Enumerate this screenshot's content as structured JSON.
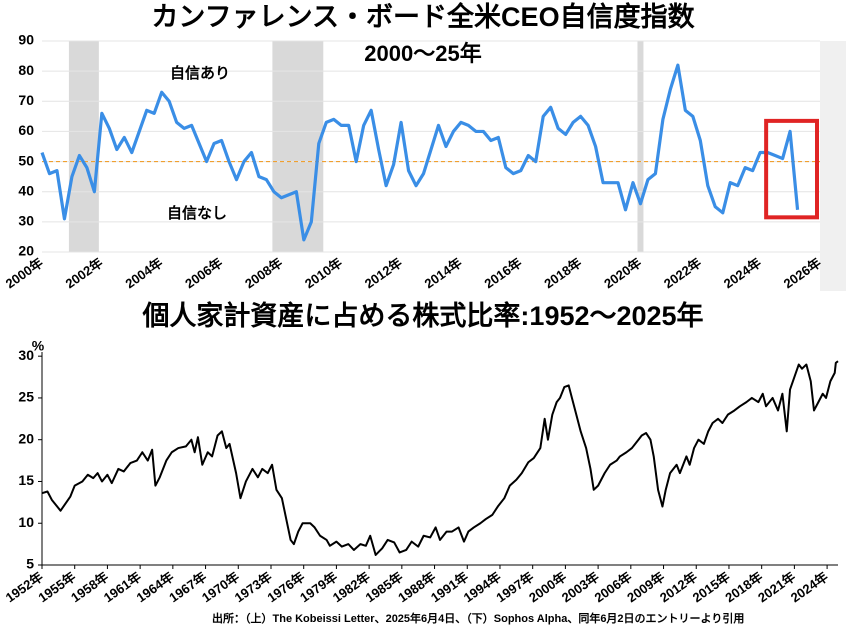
{
  "chart_data": [
    {
      "type": "line",
      "title": "カンファレンス・ボード全米CEO自信度指数",
      "subtitle": "2000～25年",
      "annotations": [
        "自信あり",
        "自信なし"
      ],
      "x": [
        2000,
        2000.25,
        2000.5,
        2000.75,
        2001,
        2001.25,
        2001.5,
        2001.75,
        2002,
        2002.25,
        2002.5,
        2002.75,
        2003,
        2003.25,
        2003.5,
        2003.75,
        2004,
        2004.25,
        2004.5,
        2004.75,
        2005,
        2005.25,
        2005.5,
        2005.75,
        2006,
        2006.25,
        2006.5,
        2006.75,
        2007,
        2007.25,
        2007.5,
        2007.75,
        2008,
        2008.25,
        2008.5,
        2008.75,
        2009,
        2009.25,
        2009.5,
        2009.75,
        2010,
        2010.25,
        2010.5,
        2010.75,
        2011,
        2011.25,
        2011.5,
        2011.75,
        2012,
        2012.25,
        2012.5,
        2012.75,
        2013,
        2013.25,
        2013.5,
        2013.75,
        2014,
        2014.25,
        2014.5,
        2014.75,
        2015,
        2015.25,
        2015.5,
        2015.75,
        2016,
        2016.25,
        2016.5,
        2016.75,
        2017,
        2017.25,
        2017.5,
        2017.75,
        2018,
        2018.25,
        2018.5,
        2018.75,
        2019,
        2019.25,
        2019.5,
        2019.75,
        2020,
        2020.25,
        2020.5,
        2020.75,
        2021,
        2021.25,
        2021.5,
        2021.75,
        2022,
        2022.25,
        2022.5,
        2022.75,
        2023,
        2023.25,
        2023.5,
        2023.75,
        2024,
        2024.25,
        2024.5,
        2024.75,
        2025,
        2025.25
      ],
      "values": [
        53,
        46,
        47,
        31,
        45,
        52,
        48,
        40,
        66,
        61,
        54,
        58,
        53,
        60,
        67,
        66,
        73,
        70,
        63,
        61,
        62,
        56,
        50,
        56,
        57,
        50,
        44,
        50,
        53,
        45,
        44,
        40,
        38,
        39,
        40,
        24,
        30,
        56,
        63,
        64,
        62,
        62,
        50,
        62,
        67,
        54,
        42,
        49,
        63,
        47,
        42,
        46,
        54,
        62,
        55,
        60,
        63,
        62,
        60,
        60,
        57,
        58,
        48,
        46,
        47,
        52,
        50,
        65,
        68,
        61,
        59,
        63,
        65,
        62,
        55,
        43,
        43,
        43,
        34,
        43,
        36,
        44,
        46,
        64,
        74,
        82,
        67,
        65,
        57,
        42,
        35,
        33,
        43,
        42,
        48,
        47,
        53,
        53,
        52,
        51,
        60,
        34
      ],
      "color": "#3a8ee6",
      "xlim": [
        2000,
        2026
      ],
      "xticks": [
        {
          "value": 2000,
          "label": "2000年"
        },
        {
          "value": 2002,
          "label": "2002年"
        },
        {
          "value": 2004,
          "label": "2004年"
        },
        {
          "value": 2006,
          "label": "2006年"
        },
        {
          "value": 2008,
          "label": "2008年"
        },
        {
          "value": 2010,
          "label": "2010年"
        },
        {
          "value": 2012,
          "label": "2012年"
        },
        {
          "value": 2014,
          "label": "2014年"
        },
        {
          "value": 2016,
          "label": "2016年"
        },
        {
          "value": 2018,
          "label": "2018年"
        },
        {
          "value": 2020,
          "label": "2020年"
        },
        {
          "value": 2022,
          "label": "2022年"
        },
        {
          "value": 2024,
          "label": "2024年"
        },
        {
          "value": 2026,
          "label": "2026年"
        }
      ],
      "ylim": [
        20,
        90
      ],
      "yticks": [
        20,
        30,
        40,
        50,
        60,
        70,
        80,
        90
      ],
      "grid": true,
      "shaded_regions": [
        [
          2000.9,
          2001.9
        ],
        [
          2007.7,
          2009.4
        ],
        [
          2019.9,
          2020.1
        ]
      ],
      "shade_color": "#d9d9d9",
      "reference_line": {
        "value": 50,
        "color": "#f0a030"
      },
      "highlight": {
        "x": [
          2024.2,
          2025.9
        ],
        "y": [
          31.5,
          63.5
        ],
        "color": "#e02424"
      }
    },
    {
      "type": "line",
      "title": "個人家計資産に占める株式比率:1952～2025年",
      "ylabel": "%",
      "x": [
        1952.0,
        1952.5,
        1952.9,
        1953.7,
        1954.6,
        1955.0,
        1955.7,
        1956.2,
        1956.7,
        1957.1,
        1957.5,
        1958.0,
        1958.4,
        1959.0,
        1959.5,
        1960.1,
        1960.7,
        1961.2,
        1961.7,
        1962.1,
        1962.4,
        1962.8,
        1963.4,
        1963.9,
        1964.5,
        1965.2,
        1965.7,
        1966.0,
        1966.3,
        1966.7,
        1967.2,
        1967.6,
        1968.1,
        1968.5,
        1968.9,
        1969.2,
        1969.8,
        1970.2,
        1970.7,
        1971.3,
        1971.8,
        1972.2,
        1972.7,
        1973.1,
        1973.5,
        1974.0,
        1974.4,
        1974.8,
        1975.1,
        1975.5,
        1975.9,
        1976.6,
        1977.0,
        1977.5,
        1978.1,
        1978.4,
        1979.0,
        1979.5,
        1980.1,
        1980.6,
        1981.2,
        1981.7,
        1982.1,
        1982.6,
        1983.2,
        1983.7,
        1984.3,
        1984.8,
        1985.4,
        1985.9,
        1986.5,
        1987.0,
        1987.6,
        1988.1,
        1988.5,
        1989.1,
        1989.6,
        1990.2,
        1990.7,
        1991.1,
        1991.6,
        1992.2,
        1992.7,
        1993.3,
        1993.8,
        1994.4,
        1994.9,
        1995.5,
        1996.0,
        1996.6,
        1997.1,
        1997.7,
        1998.1,
        1998.4,
        1998.8,
        1999.2,
        1999.5,
        1999.9,
        2000.3,
        2000.6,
        2001.0,
        2001.4,
        2001.9,
        2002.3,
        2002.6,
        2003.0,
        2003.6,
        2004.1,
        2004.7,
        2005.0,
        2005.6,
        2006.1,
        2006.7,
        2007.0,
        2007.4,
        2007.8,
        2008.1,
        2008.5,
        2008.9,
        2009.2,
        2009.6,
        2010.2,
        2010.5,
        2011.1,
        2011.4,
        2011.8,
        2012.2,
        2012.7,
        2013.1,
        2013.5,
        2014.0,
        2014.4,
        2014.9,
        2015.5,
        2016.0,
        2016.6,
        2017.1,
        2017.7,
        2018.1,
        2018.4,
        2019.0,
        2019.5,
        2019.9,
        2020.3,
        2020.6,
        2021.0,
        2021.4,
        2021.7,
        2022.1,
        2022.5,
        2022.8,
        2023.2,
        2023.6,
        2023.9,
        2024.3,
        2024.7,
        2024.8,
        2025.0
      ],
      "values": [
        13.6,
        13.8,
        12.8,
        11.5,
        13.2,
        14.5,
        15.0,
        15.8,
        15.4,
        16.0,
        15.0,
        15.8,
        14.8,
        16.5,
        16.2,
        17.2,
        17.5,
        18.5,
        17.5,
        18.8,
        14.5,
        15.5,
        17.5,
        18.5,
        19.0,
        19.2,
        20.0,
        18.5,
        20.3,
        17.0,
        18.5,
        18.0,
        20.5,
        21.0,
        19.0,
        19.5,
        16.0,
        13.0,
        15.0,
        16.5,
        15.5,
        16.5,
        16.0,
        17.0,
        14.0,
        13.0,
        10.5,
        8.0,
        7.5,
        9.0,
        10.0,
        10.0,
        9.5,
        8.5,
        8.0,
        7.3,
        7.8,
        7.2,
        7.5,
        6.8,
        7.5,
        7.3,
        8.5,
        6.2,
        7.0,
        8.0,
        7.7,
        6.5,
        6.8,
        7.8,
        7.2,
        8.5,
        8.3,
        9.5,
        8.0,
        9.0,
        9.0,
        9.5,
        7.8,
        9.0,
        9.5,
        10.0,
        10.5,
        11.0,
        12.0,
        13.0,
        14.5,
        15.2,
        16.0,
        17.3,
        17.8,
        19.0,
        22.5,
        20.0,
        23.0,
        24.5,
        25.0,
        26.3,
        26.5,
        25.0,
        23.0,
        21.0,
        19.0,
        16.5,
        14.0,
        14.5,
        16.0,
        17.0,
        17.5,
        18.0,
        18.5,
        19.0,
        20.0,
        20.5,
        20.8,
        20.0,
        18.0,
        14.0,
        12.0,
        14.0,
        16.0,
        17.0,
        16.0,
        18.0,
        17.0,
        19.0,
        20.0,
        19.5,
        21.0,
        22.0,
        22.5,
        22.0,
        23.0,
        23.5,
        24.0,
        24.5,
        25.0,
        24.5,
        25.5,
        24.0,
        25.0,
        23.5,
        25.5,
        21.0,
        26.0,
        27.5,
        29.0,
        28.5,
        29.0,
        27.0,
        23.5,
        24.5,
        25.5,
        25.0,
        27.0,
        28.0,
        29.2,
        29.4
      ],
      "color": "#000000",
      "xlim": [
        1952,
        2025
      ],
      "xticks": [
        {
          "value": 1952,
          "label": "1952年"
        },
        {
          "value": 1955,
          "label": "1955年"
        },
        {
          "value": 1958,
          "label": "1958年"
        },
        {
          "value": 1961,
          "label": "1961年"
        },
        {
          "value": 1964,
          "label": "1964年"
        },
        {
          "value": 1967,
          "label": "1967年"
        },
        {
          "value": 1970,
          "label": "1970年"
        },
        {
          "value": 1973,
          "label": "1973年"
        },
        {
          "value": 1976,
          "label": "1976年"
        },
        {
          "value": 1979,
          "label": "1979年"
        },
        {
          "value": 1982,
          "label": "1982年"
        },
        {
          "value": 1985,
          "label": "1985年"
        },
        {
          "value": 1988,
          "label": "1988年"
        },
        {
          "value": 1991,
          "label": "1991年"
        },
        {
          "value": 1994,
          "label": "1994年"
        },
        {
          "value": 1997,
          "label": "1997年"
        },
        {
          "value": 2000,
          "label": "2000年"
        },
        {
          "value": 2003,
          "label": "2003年"
        },
        {
          "value": 2006,
          "label": "2006年"
        },
        {
          "value": 2009,
          "label": "2009年"
        },
        {
          "value": 2012,
          "label": "2012年"
        },
        {
          "value": 2015,
          "label": "2015年"
        },
        {
          "value": 2018,
          "label": "2018年"
        },
        {
          "value": 2021,
          "label": "2021年"
        },
        {
          "value": 2024,
          "label": "2024年"
        }
      ],
      "ylim": [
        5,
        30.5
      ],
      "yticks": [
        5,
        10,
        15,
        20,
        25,
        30
      ],
      "grid": false,
      "axis_lines": true
    }
  ],
  "source": "出所：（上）The Kobeissi Letter、2025年6月4日、（下）Sophos Alpha、同年6月2日のエントリーより引用"
}
